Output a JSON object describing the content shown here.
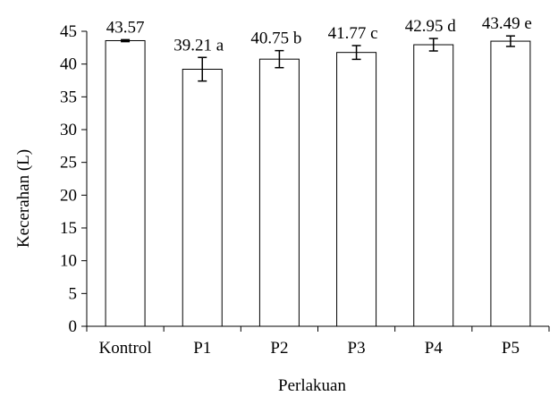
{
  "chart_data": {
    "type": "bar",
    "categories": [
      "Kontrol",
      "P1",
      "P2",
      "P3",
      "P4",
      "P5"
    ],
    "values": [
      43.57,
      39.21,
      40.75,
      41.77,
      42.95,
      43.49
    ],
    "errors": [
      0.15,
      1.8,
      1.3,
      1.05,
      0.95,
      0.8
    ],
    "data_labels": [
      "43.57",
      "39.21 a",
      "40.75 b",
      "41.77 c",
      "42.95 d",
      "43.49  e"
    ],
    "title": "",
    "xlabel": "Perlakuan",
    "ylabel": "Kecerahan (L)",
    "ylim": [
      0,
      45
    ],
    "yticks": [
      0,
      5,
      10,
      15,
      20,
      25,
      30,
      35,
      40,
      45
    ],
    "grid": false,
    "bar_fill": "#ffffff",
    "bar_stroke": "#000000"
  }
}
